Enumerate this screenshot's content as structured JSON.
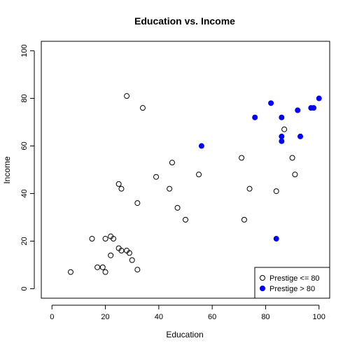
{
  "chart_data": {
    "type": "scatter",
    "title": "Education vs. Income",
    "xlabel": "Education",
    "ylabel": "Income",
    "xlim": [
      -4,
      104
    ],
    "ylim": [
      -4,
      104
    ],
    "x_ticks": [
      "0",
      "20",
      "40",
      "60",
      "80",
      "100"
    ],
    "y_ticks": [
      "0",
      "20",
      "40",
      "60",
      "80",
      "100"
    ],
    "grid": false,
    "legend_position": "bottom-right",
    "series": [
      {
        "name": "Prestige <= 80",
        "marker": "open-circle",
        "color": "#000000",
        "points": [
          {
            "x": 7,
            "y": 7
          },
          {
            "x": 15,
            "y": 21
          },
          {
            "x": 17,
            "y": 9
          },
          {
            "x": 19,
            "y": 9
          },
          {
            "x": 20,
            "y": 7
          },
          {
            "x": 20,
            "y": 21
          },
          {
            "x": 22,
            "y": 14
          },
          {
            "x": 22,
            "y": 22
          },
          {
            "x": 23,
            "y": 21
          },
          {
            "x": 25,
            "y": 17
          },
          {
            "x": 25,
            "y": 44
          },
          {
            "x": 26,
            "y": 16
          },
          {
            "x": 26,
            "y": 42
          },
          {
            "x": 28,
            "y": 16
          },
          {
            "x": 28,
            "y": 81
          },
          {
            "x": 29,
            "y": 15
          },
          {
            "x": 30,
            "y": 12
          },
          {
            "x": 32,
            "y": 8
          },
          {
            "x": 32,
            "y": 36
          },
          {
            "x": 34,
            "y": 76
          },
          {
            "x": 39,
            "y": 47
          },
          {
            "x": 44,
            "y": 42
          },
          {
            "x": 45,
            "y": 53
          },
          {
            "x": 47,
            "y": 34
          },
          {
            "x": 50,
            "y": 29
          },
          {
            "x": 55,
            "y": 48
          },
          {
            "x": 71,
            "y": 55
          },
          {
            "x": 72,
            "y": 29
          },
          {
            "x": 74,
            "y": 42
          },
          {
            "x": 84,
            "y": 41
          },
          {
            "x": 87,
            "y": 67
          },
          {
            "x": 90,
            "y": 55
          },
          {
            "x": 91,
            "y": 48
          }
        ]
      },
      {
        "name": "Prestige > 80",
        "marker": "filled-circle",
        "color": "#0000ff",
        "points": [
          {
            "x": 56,
            "y": 60
          },
          {
            "x": 76,
            "y": 72
          },
          {
            "x": 82,
            "y": 78
          },
          {
            "x": 84,
            "y": 21
          },
          {
            "x": 86,
            "y": 72
          },
          {
            "x": 86,
            "y": 64
          },
          {
            "x": 86,
            "y": 62
          },
          {
            "x": 92,
            "y": 75
          },
          {
            "x": 93,
            "y": 64
          },
          {
            "x": 97,
            "y": 76
          },
          {
            "x": 98,
            "y": 76
          },
          {
            "x": 100,
            "y": 80
          }
        ]
      }
    ]
  }
}
